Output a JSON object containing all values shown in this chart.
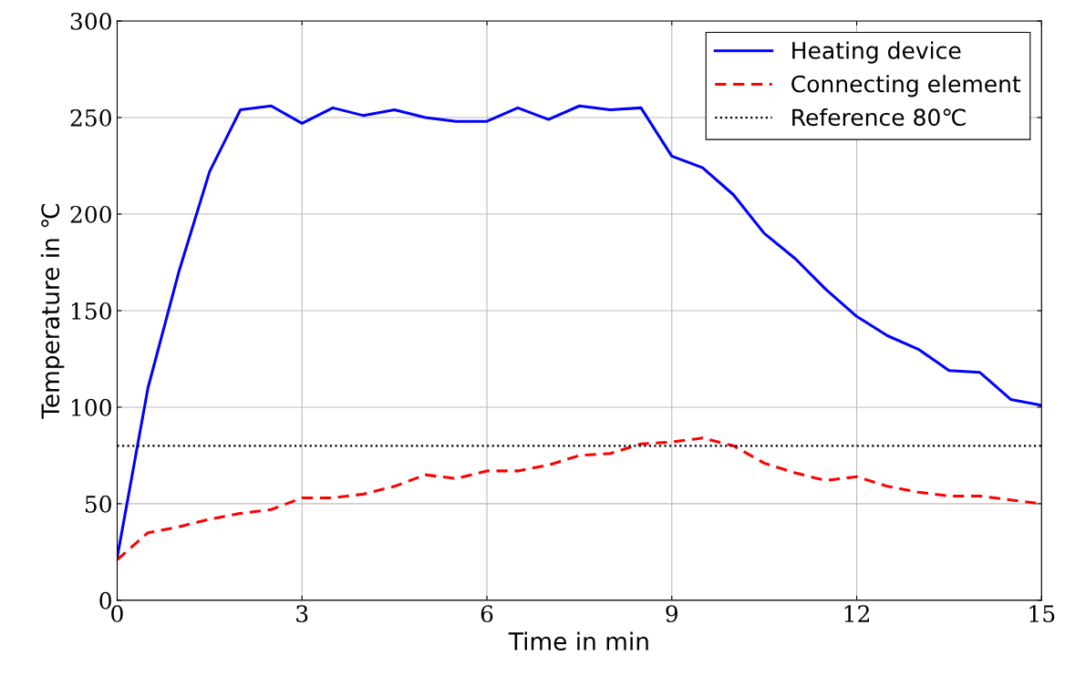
{
  "chart_data": {
    "type": "line",
    "xlabel": "Time in min",
    "ylabel": "Temperature in ℃",
    "x": [
      0,
      0.5,
      1,
      1.5,
      2,
      2.5,
      3,
      3.5,
      4,
      4.5,
      5,
      5.5,
      6,
      6.5,
      7,
      7.5,
      8,
      8.5,
      9,
      9.5,
      10,
      10.5,
      11,
      11.5,
      12,
      12.5,
      13,
      13.5,
      14,
      14.5,
      15
    ],
    "series": [
      {
        "name": "Heating device",
        "color": "#0000ff",
        "line_style": "solid",
        "values": [
          22,
          110,
          170,
          222,
          254,
          256,
          247,
          255,
          251,
          254,
          250,
          248,
          248,
          255,
          249,
          256,
          254,
          255,
          230,
          224,
          210,
          190,
          177,
          161,
          147,
          137,
          130,
          119,
          118,
          104,
          101
        ]
      },
      {
        "name": "Connecting element",
        "color": "#ff0000",
        "line_style": "dashed",
        "values": [
          21,
          35,
          38,
          42,
          45,
          47,
          53,
          53,
          55,
          59,
          65,
          63,
          67,
          67,
          70,
          75,
          76,
          81,
          82,
          84,
          80,
          71,
          66,
          62,
          64,
          59,
          56,
          54,
          54,
          52,
          50
        ]
      }
    ],
    "ref_lines": [
      {
        "axis": "y",
        "value": 80,
        "label": "Reference 80℃",
        "color": "#000000",
        "line_style": "dotted"
      }
    ],
    "xlim": [
      0,
      15
    ],
    "xticks": [
      0,
      3,
      6,
      9,
      12,
      15
    ],
    "ylim": [
      0,
      300
    ],
    "yticks": [
      0,
      50,
      100,
      150,
      200,
      250,
      300
    ],
    "grid": true,
    "legend": "top right",
    "marker": "none"
  }
}
